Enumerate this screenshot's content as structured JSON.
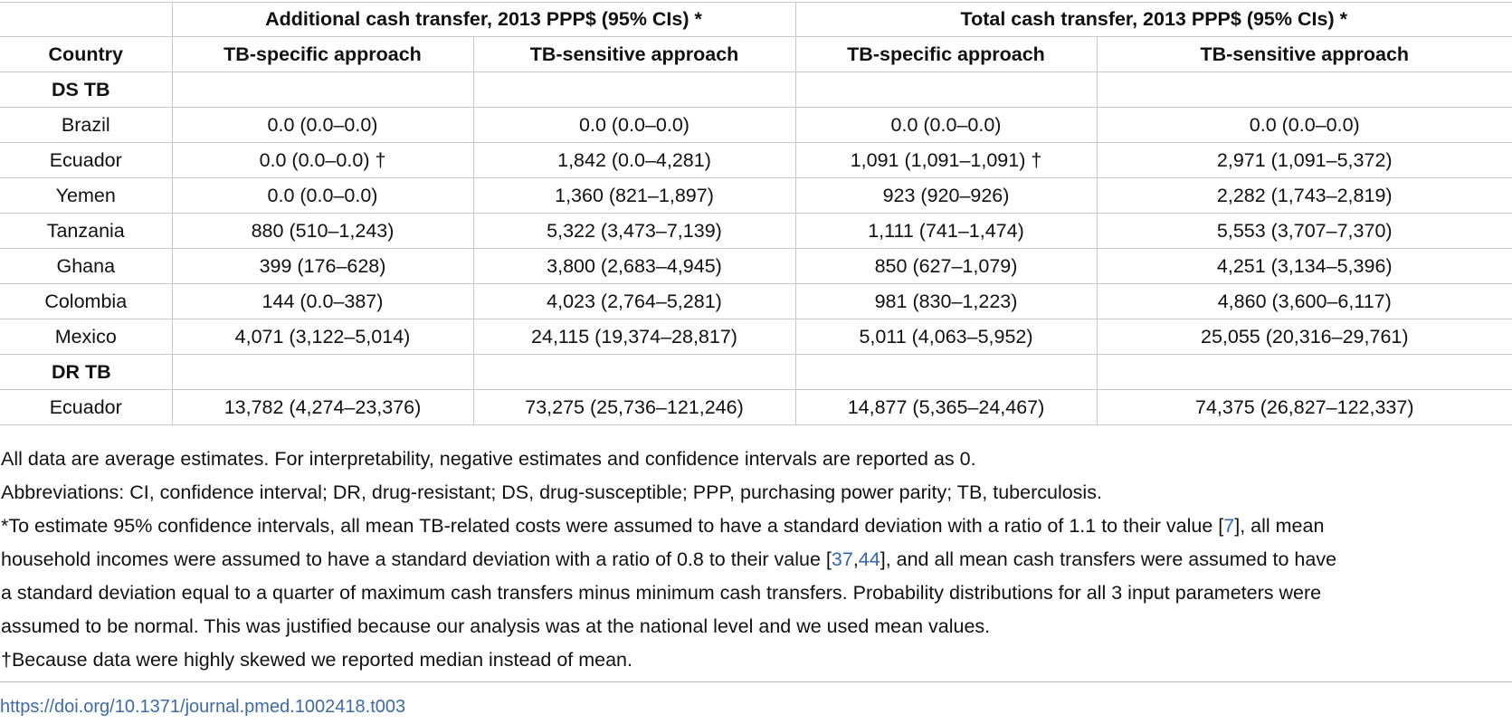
{
  "table": {
    "group_headers": [
      "Additional cash transfer, 2013 PPP$ (95% CIs) *",
      "Total cash transfer, 2013 PPP$ (95% CIs) *"
    ],
    "country_header": "Country",
    "sub_headers": [
      "TB-specific approach",
      "TB-sensitive approach",
      "TB-specific approach",
      "TB-sensitive approach"
    ],
    "sections": [
      {
        "label": "DS TB",
        "rows": [
          {
            "country": "Brazil",
            "values": [
              "0.0 (0.0–0.0)",
              "0.0 (0.0–0.0)",
              "0.0 (0.0–0.0)",
              "0.0 (0.0–0.0)"
            ]
          },
          {
            "country": "Ecuador",
            "values": [
              "0.0 (0.0–0.0) †",
              "1,842 (0.0–4,281)",
              "1,091 (1,091–1,091) †",
              "2,971 (1,091–5,372)"
            ]
          },
          {
            "country": "Yemen",
            "values": [
              "0.0 (0.0–0.0)",
              "1,360 (821–1,897)",
              "923 (920–926)",
              "2,282 (1,743–2,819)"
            ]
          },
          {
            "country": "Tanzania",
            "values": [
              "880 (510–1,243)",
              "5,322 (3,473–7,139)",
              "1,111 (741–1,474)",
              "5,553 (3,707–7,370)"
            ]
          },
          {
            "country": "Ghana",
            "values": [
              "399 (176–628)",
              "3,800 (2,683–4,945)",
              "850 (627–1,079)",
              "4,251 (3,134–5,396)"
            ]
          },
          {
            "country": "Colombia",
            "values": [
              "144 (0.0–387)",
              "4,023 (2,764–5,281)",
              "981 (830–1,223)",
              "4,860 (3,600–6,117)"
            ]
          },
          {
            "country": "Mexico",
            "values": [
              "4,071 (3,122–5,014)",
              "24,115 (19,374–28,817)",
              "5,011 (4,063–5,952)",
              "25,055 (20,316–29,761)"
            ]
          }
        ]
      },
      {
        "label": "DR TB",
        "rows": [
          {
            "country": "Ecuador",
            "values": [
              "13,782 (4,274–23,376)",
              "73,275 (25,736–121,246)",
              "14,877 (5,365–24,467)",
              "74,375 (26,827–122,337)"
            ]
          }
        ]
      }
    ]
  },
  "footnotes": {
    "note1": "All data are average estimates. For interpretability, negative estimates and confidence intervals are reported as 0.",
    "note2": "Abbreviations: CI, confidence interval; DR, drug-resistant; DS, drug-susceptible; PPP, purchasing power parity; TB, tuberculosis.",
    "note3_part1": "*To estimate 95% confidence intervals, all mean TB-related costs were assumed to have a standard deviation with a ratio of 1.1 to their value [",
    "note3_ref1": "7",
    "note3_part2": "], all mean",
    "note3_part3": "household incomes were assumed to have a standard deviation with a ratio of 0.8 to their value [",
    "note3_ref2": "37",
    "note3_sep": ",",
    "note3_ref3": "44",
    "note3_part4": "], and all mean cash transfers were assumed to have",
    "note3_line3": "a standard deviation equal to a quarter of maximum cash transfers minus minimum cash transfers. Probability distributions for all 3 input parameters were",
    "note3_line4": "assumed to be normal. This was justified because our analysis was at the national level and we used mean values.",
    "note4": "†Because data were highly skewed we reported median instead of mean."
  },
  "doi_link": "https://doi.org/10.1371/journal.pmed.1002418.t003"
}
